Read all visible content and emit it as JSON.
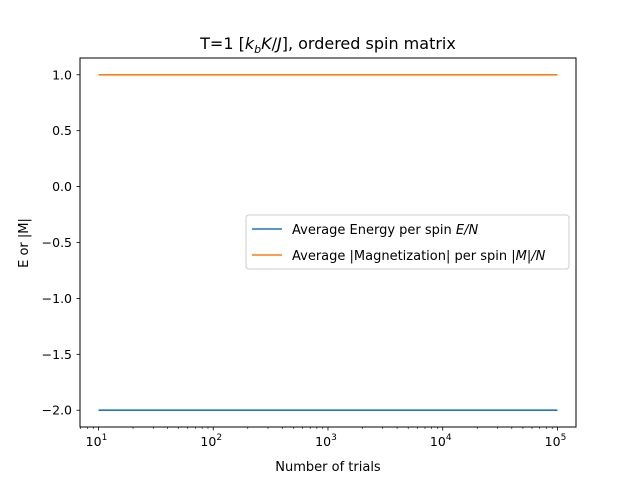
{
  "chart_data": {
    "type": "line",
    "title_parts": {
      "prefix": "T=1 [",
      "k": "k",
      "k_sub": "b",
      "K": "K",
      "slash": "/",
      "J": "J",
      "suffix": "], ordered spin matrix"
    },
    "xlabel": "Number of trials",
    "ylabel": "E or |M|",
    "xscale": "log",
    "xlim": [
      6.9,
      145000
    ],
    "ylim": [
      -2.15,
      1.15
    ],
    "x_ticks": [
      {
        "value": 10,
        "base": "10",
        "exp": "1"
      },
      {
        "value": 100,
        "base": "10",
        "exp": "2"
      },
      {
        "value": 1000,
        "base": "10",
        "exp": "3"
      },
      {
        "value": 10000,
        "base": "10",
        "exp": "4"
      },
      {
        "value": 100000,
        "base": "10",
        "exp": "5"
      }
    ],
    "y_ticks": [
      {
        "value": 1.0,
        "label": "1.0"
      },
      {
        "value": 0.5,
        "label": "0.5"
      },
      {
        "value": 0.0,
        "label": "0.0"
      },
      {
        "value": -0.5,
        "label": "−0.5"
      },
      {
        "value": -1.0,
        "label": "−1.0"
      },
      {
        "value": -1.5,
        "label": "−1.5"
      },
      {
        "value": -2.0,
        "label": "−2.0"
      }
    ],
    "legend_position": "center-right",
    "grid": false,
    "series": [
      {
        "name_text": "Average Energy per spin ",
        "name_math": "E/N",
        "color": "#1f77b4",
        "x": [
          10,
          100,
          1000,
          10000,
          100000
        ],
        "y": [
          -2.0,
          -2.0,
          -2.0,
          -2.0,
          -2.0
        ]
      },
      {
        "name_text": "Average |Magnetization| per spin ",
        "name_math": "|M|/N",
        "color": "#ff7f0e",
        "x": [
          10,
          100,
          1000,
          10000,
          100000
        ],
        "y": [
          1.0,
          1.0,
          1.0,
          1.0,
          1.0
        ]
      }
    ]
  }
}
